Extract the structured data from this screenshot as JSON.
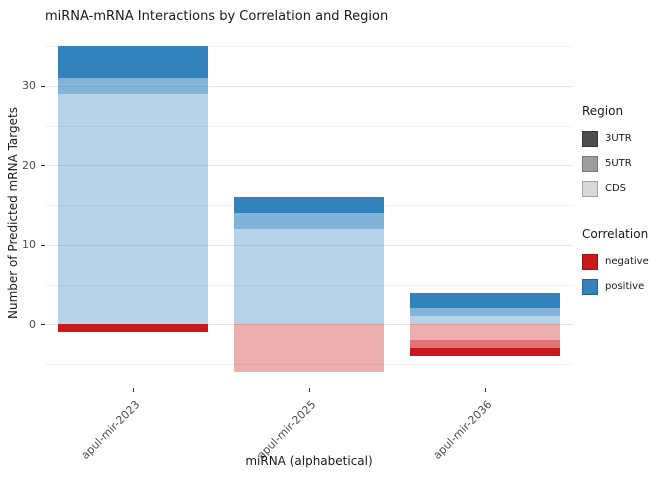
{
  "title": "miRNA-mRNA Interactions by Correlation and Region",
  "chart_data": {
    "type": "bar",
    "stacked": true,
    "title": "miRNA-mRNA Interactions by Correlation and Region",
    "xlabel": "miRNA (alphabetical)",
    "ylabel": "Number of Predicted mRNA Targets",
    "categories": [
      "apul-mir-2023",
      "apul-mir-2025",
      "apul-mir-2036"
    ],
    "ylim": [
      -8,
      36
    ],
    "yticks": [
      0,
      10,
      20,
      30
    ],
    "yticks_minor": [
      -5,
      5,
      15,
      25,
      35
    ],
    "y_tick_labels": [
      "0",
      "10",
      "20",
      "30"
    ],
    "bar_width_frac": 0.85,
    "grid": true,
    "legend_position": "right",
    "series": [
      {
        "correlation": "positive",
        "region": "CDS",
        "values": [
          29,
          12,
          1
        ],
        "color": "rgba(49,130,189,0.35)"
      },
      {
        "correlation": "positive",
        "region": "5UTR",
        "values": [
          2,
          2,
          1
        ],
        "color": "rgba(49,130,189,0.6)"
      },
      {
        "correlation": "positive",
        "region": "3UTR",
        "values": [
          4,
          2,
          2
        ],
        "color": "rgba(49,130,189,1)"
      },
      {
        "correlation": "negative",
        "region": "CDS",
        "values": [
          0,
          6,
          2
        ],
        "color": "rgba(203,24,29,0.35)"
      },
      {
        "correlation": "negative",
        "region": "5UTR",
        "values": [
          0,
          0,
          1
        ],
        "color": "rgba(203,24,29,0.6)"
      },
      {
        "correlation": "negative",
        "region": "3UTR",
        "values": [
          1,
          0,
          1
        ],
        "color": "rgba(203,24,29,1)"
      }
    ]
  },
  "legend": {
    "region": {
      "title": "Region",
      "items": [
        {
          "label": "3UTR",
          "color": "#4d4d4d"
        },
        {
          "label": "5UTR",
          "color": "#9e9e9e"
        },
        {
          "label": "CDS",
          "color": "#d9d9d9"
        }
      ]
    },
    "correlation": {
      "title": "Correlation",
      "items": [
        {
          "label": "negative",
          "color": "#cb181d"
        },
        {
          "label": "positive",
          "color": "#3182bd"
        }
      ]
    }
  }
}
